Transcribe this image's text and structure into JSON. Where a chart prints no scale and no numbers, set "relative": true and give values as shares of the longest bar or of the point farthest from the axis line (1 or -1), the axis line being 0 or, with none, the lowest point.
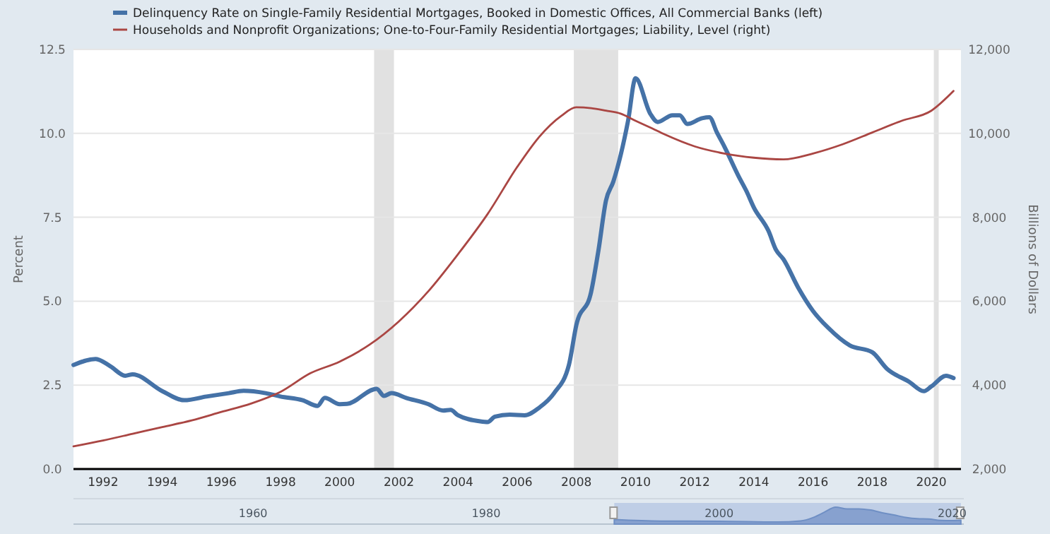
{
  "chart_data": [
    {
      "type": "line",
      "ylabel": "Percent",
      "y2label": "Billions of Dollars",
      "legend": "top left",
      "grid": "y",
      "xlim": [
        "1991-01",
        "2021-01"
      ],
      "xticks": [
        "1992",
        "1994",
        "1996",
        "1998",
        "2000",
        "2002",
        "2004",
        "2006",
        "2008",
        "2010",
        "2012",
        "2014",
        "2016",
        "2018",
        "2020"
      ],
      "ylim": [
        0,
        12.5
      ],
      "yticks": [
        {
          "value": 0,
          "label": "0.0"
        },
        2.5,
        {
          "value": 5,
          "label": "5.0"
        },
        7.5,
        {
          "value": 10,
          "label": "10.0"
        },
        12.5
      ],
      "y2lim": [
        2000,
        12000
      ],
      "y2ticks": [
        {
          "value": 2000,
          "label": "2,000"
        },
        {
          "value": 4000,
          "label": "4,000"
        },
        {
          "value": 6000,
          "label": "6,000"
        },
        {
          "value": 8000,
          "label": "8,000"
        },
        {
          "value": 10000,
          "label": "10,000"
        },
        {
          "value": 12000,
          "label": "12,000"
        }
      ],
      "bands": [
        {
          "axis": "x",
          "from": "2001-03",
          "to": "2001-11",
          "color": "#e1e1e1"
        },
        {
          "axis": "x",
          "from": "2007-12",
          "to": "2009-06",
          "color": "#e1e1e1"
        },
        {
          "axis": "x",
          "from": "2020-02",
          "to": "2020-04",
          "color": "#e1e1e1"
        }
      ],
      "series": [
        {
          "name": "Delinquency Rate on Single-Family Residential Mortgages, Booked in Domestic Offices, All Commercial Banks (left)",
          "color": "#4572a7",
          "x": [
            "1991-01",
            "1991-10",
            "1992-04",
            "1992-10",
            "1993-01",
            "1994-01",
            "1994-10",
            "1995-07",
            "1996-04",
            "1996-10",
            "1997-07",
            "1998-01",
            "1998-10",
            "1999-04",
            "1999-07",
            "2000-01",
            "2000-04",
            "2001-04",
            "2001-07",
            "2001-10",
            "2002-04",
            "2003-01",
            "2003-07",
            "2003-10",
            "2004-01",
            "2004-10",
            "2005-01",
            "2005-04",
            "2005-10",
            "2006-04",
            "2006-10",
            "2007-04",
            "2007-10",
            "2008-01",
            "2008-07",
            "2008-10",
            "2009-01",
            "2009-04",
            "2009-10",
            "2010-01",
            "2010-07",
            "2010-10",
            "2011-04",
            "2011-07",
            "2011-10",
            "2012-04",
            "2012-07",
            "2012-10",
            "2013-01",
            "2013-07",
            "2013-10",
            "2014-01",
            "2014-07",
            "2014-10",
            "2015-01",
            "2015-07",
            "2016-01",
            "2016-07",
            "2017-04",
            "2018-01",
            "2018-07",
            "2019-04",
            "2019-10",
            "2020-01",
            "2020-07",
            "2020-10"
          ],
          "values": [
            3.1,
            3.28,
            3.06,
            2.78,
            2.82,
            2.32,
            2.05,
            2.16,
            2.26,
            2.33,
            2.26,
            2.16,
            2.05,
            1.88,
            2.12,
            1.93,
            1.94,
            2.39,
            2.18,
            2.26,
            2.12,
            1.93,
            1.74,
            1.76,
            1.6,
            1.42,
            1.4,
            1.56,
            1.62,
            1.6,
            1.83,
            2.26,
            3.1,
            4.29,
            5.27,
            6.53,
            8.0,
            8.56,
            10.38,
            11.64,
            10.59,
            10.34,
            10.54,
            10.54,
            10.28,
            10.45,
            10.48,
            10.03,
            9.61,
            8.7,
            8.28,
            7.79,
            7.09,
            6.53,
            6.25,
            5.41,
            4.71,
            4.22,
            3.68,
            3.48,
            2.99,
            2.6,
            2.32,
            2.46,
            2.78,
            2.71
          ]
        },
        {
          "name": "Households and Nonprofit Organizations; One-to-Four-Family Residential Mortgages; Liability, Level (right)",
          "color": "#aa4643",
          "axis": "y2",
          "x": [
            "1991-01",
            "1992-01",
            "1993-01",
            "1994-01",
            "1995-01",
            "1996-01",
            "1997-01",
            "1998-01",
            "1999-01",
            "2000-01",
            "2001-01",
            "2002-01",
            "2003-01",
            "2004-01",
            "2005-01",
            "2006-01",
            "2006-10",
            "2007-07",
            "2008-01",
            "2008-07",
            "2009-01",
            "2009-07",
            "2010-01",
            "2010-07",
            "2011-01",
            "2012-01",
            "2013-01",
            "2014-01",
            "2015-01",
            "2016-01",
            "2017-01",
            "2018-01",
            "2019-01",
            "2020-01",
            "2020-10"
          ],
          "values": [
            2540,
            2680,
            2840,
            3000,
            3160,
            3360,
            3560,
            3840,
            4280,
            4560,
            4960,
            5520,
            6240,
            7120,
            8080,
            9200,
            9920,
            10420,
            10620,
            10600,
            10540,
            10470,
            10300,
            10140,
            9970,
            9690,
            9520,
            9420,
            9380,
            9520,
            9740,
            10020,
            10300,
            10540,
            11010
          ]
        }
      ]
    },
    {
      "type": "area",
      "relative": true,
      "tick_labels": "x",
      "color": "#6f8fc4",
      "xlim": [
        "1944-08",
        "2021-01"
      ],
      "xticks": [
        "1960",
        "1980",
        "2000",
        "2020"
      ],
      "x": [
        "1991-01",
        "1995-01",
        "2000-01",
        "2005-01",
        "2007-01",
        "2008-01",
        "2009-01",
        "2010-01",
        "2011-01",
        "2012-01",
        "2013-01",
        "2014-01",
        "2015-01",
        "2016-01",
        "2017-01",
        "2018-01",
        "2019-01",
        "2020-01",
        "2020-10"
      ],
      "values": [
        0.27,
        0.18,
        0.17,
        0.12,
        0.19,
        0.37,
        0.69,
        1,
        0.9,
        0.9,
        0.83,
        0.67,
        0.54,
        0.4,
        0.32,
        0.3,
        0.22,
        0.21,
        0.23
      ]
    }
  ]
}
